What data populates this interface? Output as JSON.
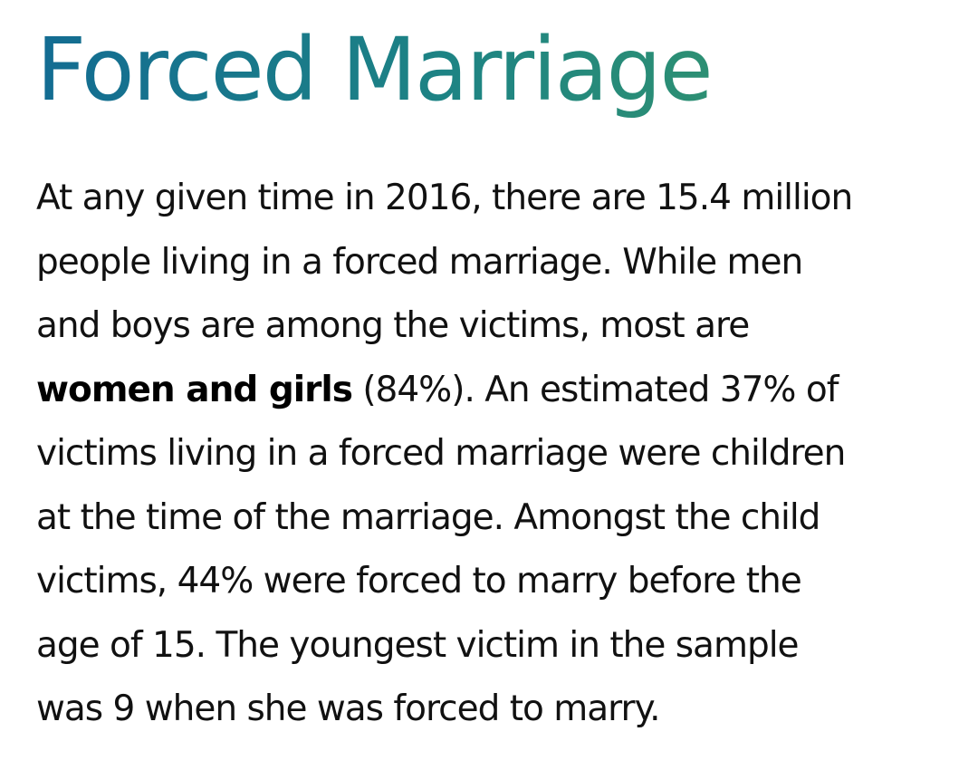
{
  "heading": {
    "title": "Forced Marriage",
    "gradient_start": "#136c92",
    "gradient_end": "#3a9a64"
  },
  "paragraph": {
    "lines": [
      "At any given time in 2016, there are 15.4 million",
      "people living in a forced marriage. While men",
      "and boys are among the victims, most are",
      {
        "bold": "women and girls",
        "rest": " (84%). An estimated 37% of"
      },
      "victims living in a forced marriage were children",
      "at the time of the marriage. Amongst the child",
      "victims, 44% were forced to marry before the",
      "age of 15. The youngest victim in the sample",
      "was 9 when she was forced to marry."
    ]
  }
}
